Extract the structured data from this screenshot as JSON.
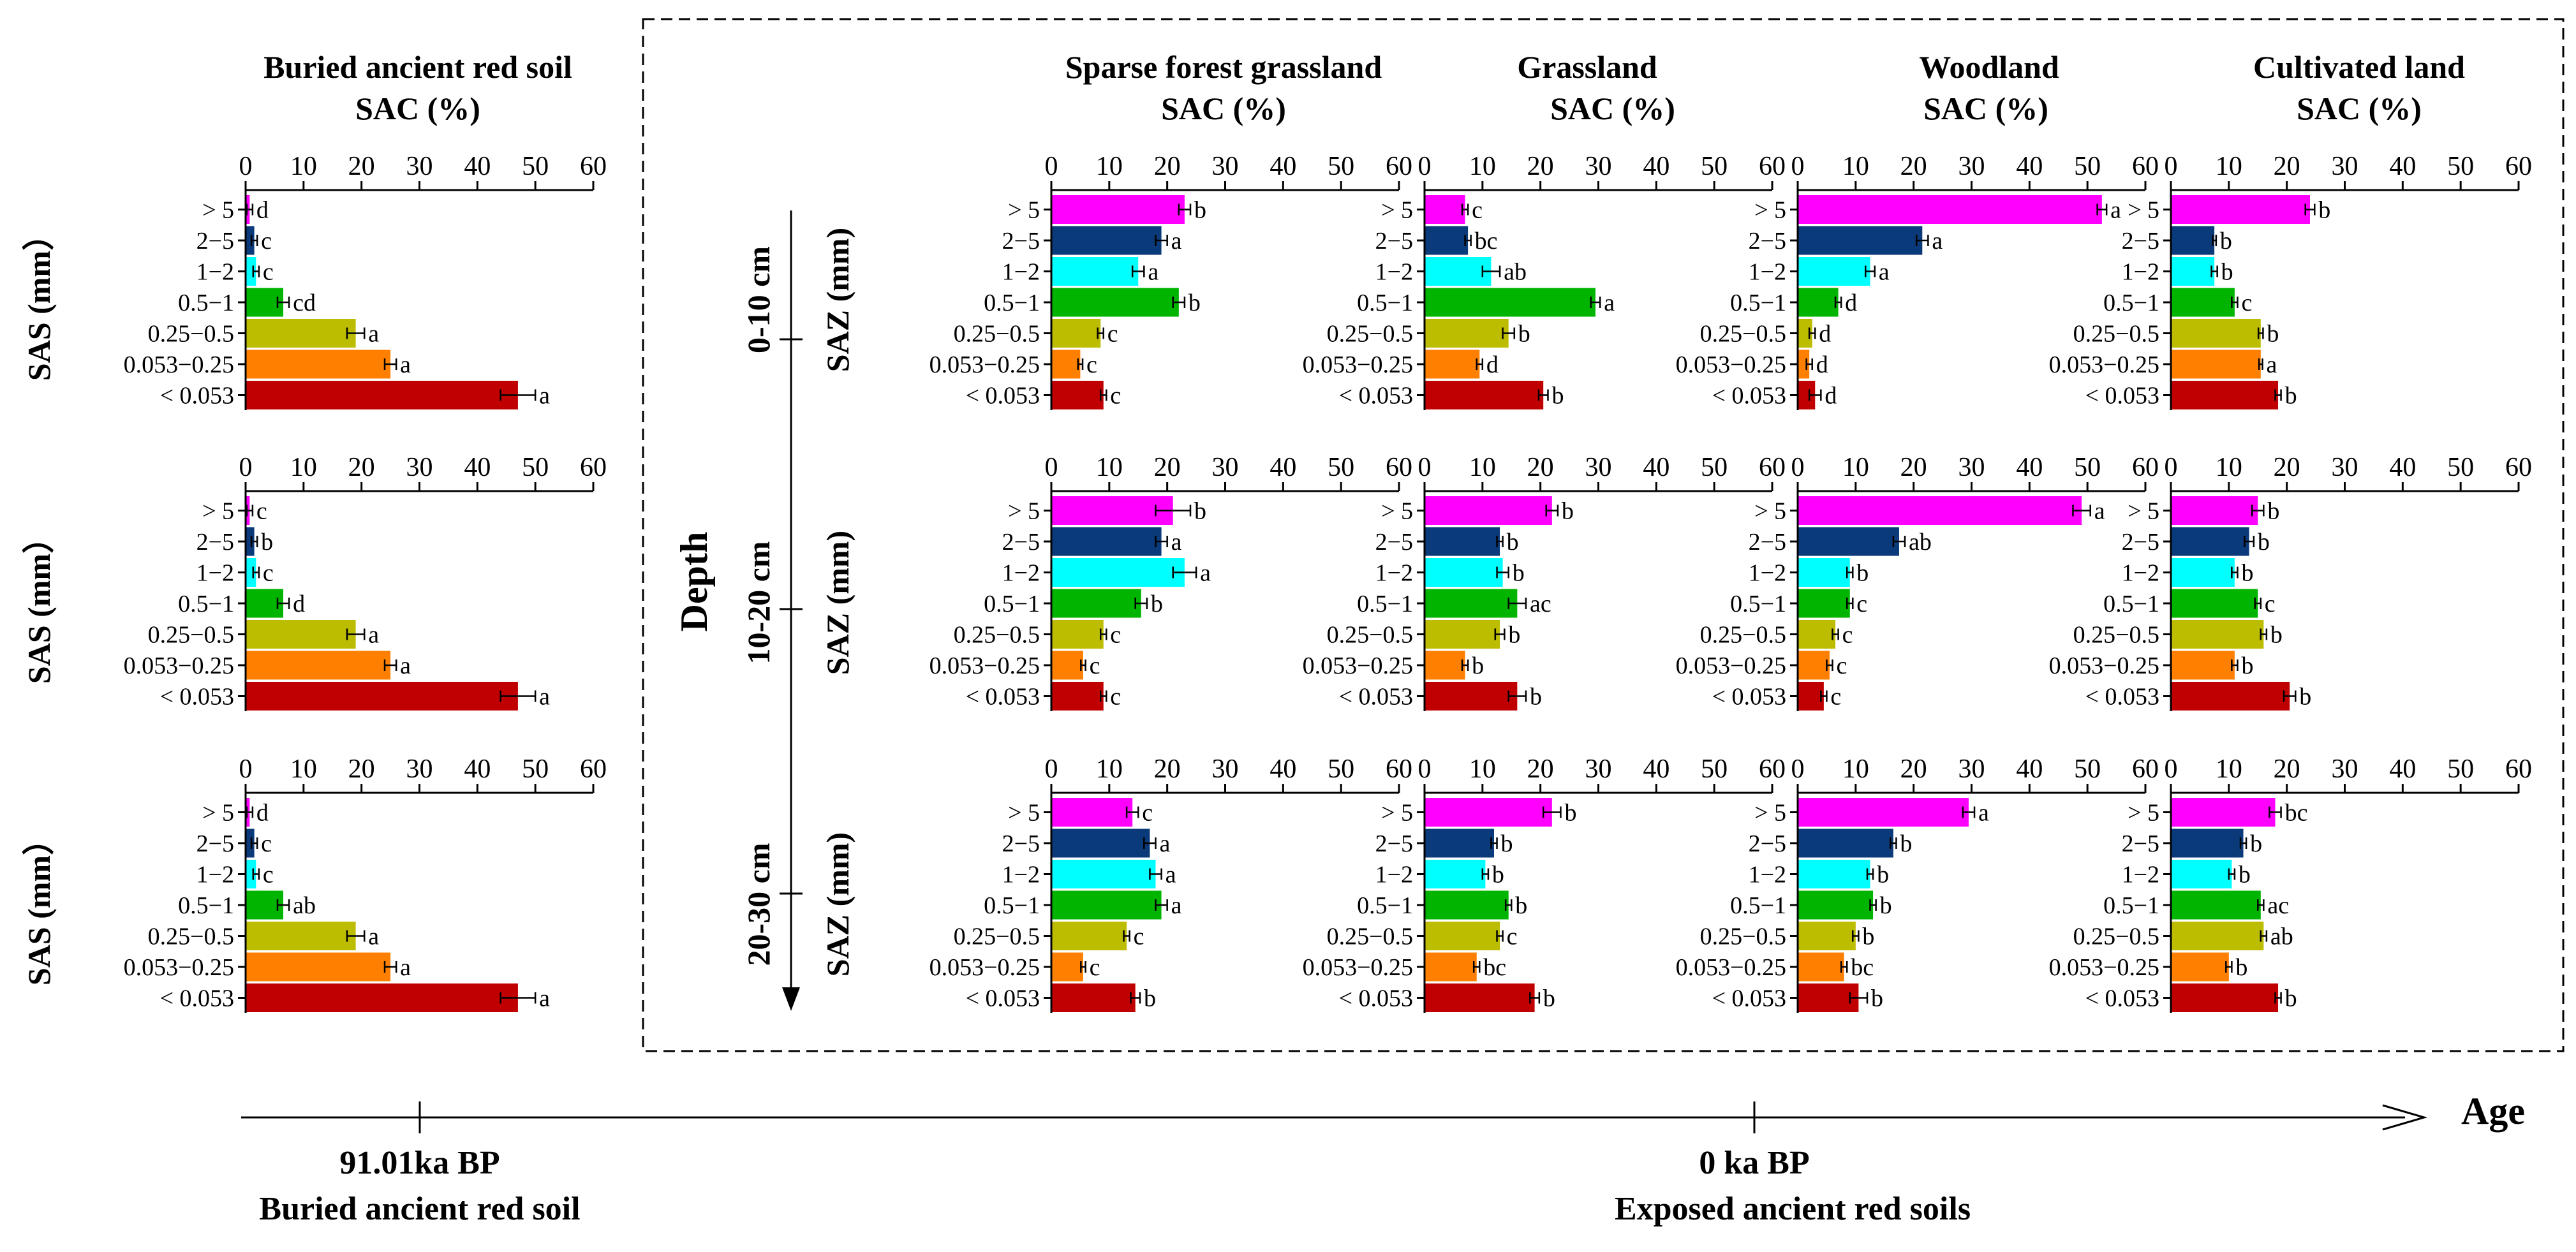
{
  "chart_data": {
    "type": "bar",
    "orientation": "horizontal",
    "x_axis_label": "SAC (%)",
    "xlim": [
      0,
      60
    ],
    "x_ticks": [
      0,
      10,
      20,
      30,
      40,
      50,
      60
    ],
    "categories": [
      "> 5",
      "2−5",
      "1−2",
      "0.5−1",
      "0.25−0.5",
      "0.053−0.25",
      "< 0.053"
    ],
    "category_colors": [
      "#ff00ff",
      "#0b3a7a",
      "#00ffff",
      "#00b400",
      "#bcbc00",
      "#ff8000",
      "#c00000"
    ],
    "buried_ylabel": "SAS (mm）",
    "exposed_ylabel": "SAZ (mm)",
    "panels": [
      {
        "column": "Buried ancient red soil",
        "depth": "0-10 cm",
        "values": [
          0.7,
          1.5,
          1.8,
          6.5,
          19,
          25,
          47
        ],
        "errors": [
          0.5,
          0.5,
          0.5,
          1,
          1.5,
          1,
          3
        ],
        "letters": [
          "d",
          "c",
          "c",
          "cd",
          "a",
          "a",
          "a"
        ]
      },
      {
        "column": "Buried ancient red soil",
        "depth": "10-20 cm",
        "values": [
          0.7,
          1.5,
          1.8,
          6.5,
          19,
          25,
          47
        ],
        "errors": [
          0.5,
          0.5,
          0.5,
          1,
          1.5,
          1,
          3
        ],
        "letters": [
          "c",
          "b",
          "c",
          "d",
          "a",
          "a",
          "a"
        ]
      },
      {
        "column": "Buried ancient red soil",
        "depth": "20-30 cm",
        "values": [
          0.7,
          1.5,
          1.8,
          6.5,
          19,
          25,
          47
        ],
        "errors": [
          0.5,
          0.5,
          0.5,
          1,
          1.5,
          1,
          3
        ],
        "letters": [
          "d",
          "c",
          "c",
          "ab",
          "a",
          "a",
          "a"
        ]
      },
      {
        "column": "Sparse forest grassland",
        "depth": "0-10 cm",
        "values": [
          23,
          19,
          15,
          22,
          8.5,
          5,
          9
        ],
        "errors": [
          1,
          1,
          1,
          1,
          0.5,
          0.4,
          0.5
        ],
        "letters": [
          "b",
          "a",
          "a",
          "b",
          "c",
          "c",
          "c"
        ]
      },
      {
        "column": "Sparse forest grassland",
        "depth": "10-20 cm",
        "values": [
          21,
          19,
          23,
          15.5,
          9,
          5.5,
          9
        ],
        "errors": [
          3,
          1,
          2,
          1,
          0.5,
          0.4,
          0.5
        ],
        "letters": [
          "b",
          "a",
          "a",
          "b",
          "c",
          "c",
          "c"
        ]
      },
      {
        "column": "Sparse forest grassland",
        "depth": "20-30 cm",
        "values": [
          14,
          17,
          18,
          19,
          13,
          5.5,
          14.5
        ],
        "errors": [
          1,
          1,
          1,
          1,
          0.5,
          0.4,
          0.8
        ],
        "letters": [
          "c",
          "a",
          "a",
          "a",
          "c",
          "c",
          "b"
        ]
      },
      {
        "column": "Grassland",
        "depth": "0-10 cm",
        "values": [
          7,
          7.5,
          11.5,
          29.5,
          14.5,
          9.5,
          20.5
        ],
        "errors": [
          0.5,
          0.5,
          1.5,
          0.8,
          1,
          0.5,
          0.8
        ],
        "letters": [
          "c",
          "bc",
          "ab",
          "a",
          "b",
          "d",
          "b"
        ]
      },
      {
        "column": "Grassland",
        "depth": "10-20 cm",
        "values": [
          22,
          13,
          13.5,
          16,
          13,
          7,
          16
        ],
        "errors": [
          1,
          0.5,
          1,
          1.5,
          0.8,
          0.5,
          1.5
        ],
        "letters": [
          "b",
          "b",
          "b",
          "ac",
          "b",
          "b",
          "b"
        ]
      },
      {
        "column": "Grassland",
        "depth": "20-30 cm",
        "values": [
          22,
          12,
          10.5,
          14.5,
          13,
          9,
          19
        ],
        "errors": [
          1.5,
          0.5,
          0.5,
          0.5,
          0.5,
          0.5,
          0.8
        ],
        "letters": [
          "b",
          "b",
          "b",
          "b",
          "c",
          "bc",
          "b"
        ]
      },
      {
        "column": "Woodland",
        "depth": "0-10 cm",
        "values": [
          52.5,
          21.5,
          12.5,
          7,
          2.5,
          2,
          3
        ],
        "errors": [
          0.8,
          1,
          0.8,
          0.5,
          0.5,
          0.5,
          1
        ],
        "letters": [
          "a",
          "a",
          "a",
          "d",
          "d",
          "d",
          "d"
        ]
      },
      {
        "column": "Woodland",
        "depth": "10-20 cm",
        "values": [
          49,
          17.5,
          9,
          9,
          6.5,
          5.5,
          4.5
        ],
        "errors": [
          1.5,
          1,
          0.5,
          0.5,
          0.5,
          0.5,
          0.5
        ],
        "letters": [
          "a",
          "ab",
          "b",
          "c",
          "c",
          "c",
          "c"
        ]
      },
      {
        "column": "Woodland",
        "depth": "20-30 cm",
        "values": [
          29.5,
          16.5,
          12.5,
          13,
          10,
          8,
          10.5
        ],
        "errors": [
          1,
          0.5,
          0.5,
          0.5,
          0.5,
          0.5,
          1.5
        ],
        "letters": [
          "a",
          "b",
          "b",
          "b",
          "b",
          "bc",
          "b"
        ]
      },
      {
        "column": "Cultivated land",
        "depth": "0-10 cm",
        "values": [
          24,
          7.5,
          7.5,
          11,
          15.5,
          15.5,
          18.5
        ],
        "errors": [
          0.8,
          0.3,
          0.5,
          0.5,
          0.4,
          0.3,
          0.5
        ],
        "letters": [
          "b",
          "b",
          "b",
          "c",
          "b",
          "a",
          "b"
        ]
      },
      {
        "column": "Cultivated land",
        "depth": "10-20 cm",
        "values": [
          15,
          13.5,
          11,
          15,
          16,
          11,
          20.5
        ],
        "errors": [
          1,
          0.8,
          0.5,
          0.5,
          0.5,
          0.5,
          1
        ],
        "letters": [
          "b",
          "b",
          "b",
          "c",
          "b",
          "b",
          "b"
        ]
      },
      {
        "column": "Cultivated land",
        "depth": "20-30 cm",
        "values": [
          18,
          12.5,
          10.5,
          15.5,
          16,
          10,
          18.5
        ],
        "errors": [
          1,
          0.5,
          0.5,
          0.5,
          0.5,
          0.5,
          0.5
        ],
        "letters": [
          "bc",
          "b",
          "b",
          "ac",
          "ab",
          "b",
          "b"
        ]
      }
    ]
  },
  "column_titles": {
    "buried": "Buried ancient red soil",
    "sparse": "Sparse forest grassland",
    "grassland": "Grassland",
    "woodland": "Woodland",
    "cultivated": "Cultivated land"
  },
  "depth_axis": {
    "label": "Depth",
    "labels": [
      "0-10 cm",
      "10-20 cm",
      "20-30 cm"
    ]
  },
  "age_axis": {
    "label": "Age",
    "left_age": "91.01ka BP",
    "left_desc": "Buried ancient red soil",
    "right_age": "0 ka BP",
    "right_desc": "Exposed ancient red soils"
  }
}
